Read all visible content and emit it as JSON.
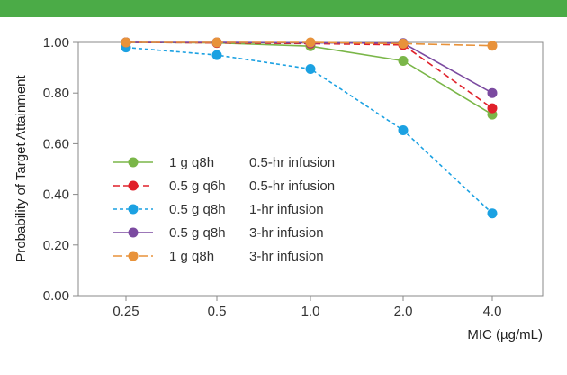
{
  "header": {
    "bar_color": "#4bab47"
  },
  "chart_data": {
    "type": "line",
    "title": "",
    "xlabel": "MIC (µg/mL)",
    "ylabel": "Probability of Target Attainment",
    "categories": [
      "0.25",
      "0.5",
      "1.0",
      "2.0",
      "4.0"
    ],
    "y_ticks": [
      "0.00",
      "0.20",
      "0.40",
      "0.60",
      "0.80",
      "1.00"
    ],
    "ylim": [
      0,
      1
    ],
    "grid": false,
    "legend_position": "bottom-left",
    "series": [
      {
        "name": "1 g q8h",
        "infusion": "0.5-hr infusion",
        "color": "#7ab648",
        "dash": "solid",
        "values": [
          1.0,
          0.998,
          0.985,
          0.927,
          0.715
        ]
      },
      {
        "name": "0.5 g q6h",
        "infusion": "0.5-hr infusion",
        "color": "#e0202a",
        "dash": "dashed",
        "values": [
          1.0,
          0.998,
          0.995,
          0.99,
          0.74
        ]
      },
      {
        "name": "0.5 g q8h",
        "infusion": "1-hr infusion",
        "color": "#1ba1e2",
        "dash": "dotted",
        "values": [
          0.98,
          0.95,
          0.895,
          0.653,
          0.325
        ]
      },
      {
        "name": "0.5 g q8h",
        "infusion": "3-hr infusion",
        "color": "#7b4aa0",
        "dash": "solid",
        "values": [
          1.0,
          1.0,
          0.998,
          0.997,
          0.8
        ]
      },
      {
        "name": "1 g q8h",
        "infusion": "3-hr infusion",
        "color": "#e8923a",
        "dash": "longdash",
        "values": [
          1.0,
          1.0,
          1.0,
          0.995,
          0.987
        ]
      }
    ]
  }
}
